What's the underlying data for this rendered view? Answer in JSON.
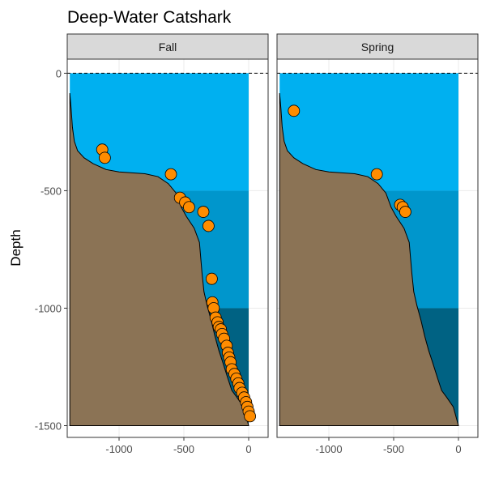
{
  "chart_data": {
    "type": "scatter",
    "title": "Deep-Water Catshark",
    "xlabel": "",
    "ylabel": "Depth",
    "xlim": [
      -1400,
      150
    ],
    "ylim": [
      -1550,
      60
    ],
    "x_ticks": [
      -1000,
      -500,
      0
    ],
    "y_ticks": [
      0,
      -500,
      -1000,
      -1500
    ],
    "x_tick_labels": [
      "-1000",
      "-500",
      "0"
    ],
    "y_tick_labels": [
      "0",
      "-500",
      "-1000",
      "-1500"
    ],
    "grid": true,
    "facets": [
      "Fall",
      "Spring"
    ],
    "colors": {
      "water_shallow": "#00B0F0",
      "water_mid": "#0096CC",
      "water_deep": "#006283",
      "seabed": "#8B7355",
      "points": "#FF8C00",
      "strip": "#D9D9D9",
      "grid": "#EBEBEB"
    },
    "water_bands": [
      {
        "from": 0,
        "to": -500
      },
      {
        "from": -500,
        "to": -1000
      },
      {
        "from": -1000,
        "to": -1500
      }
    ],
    "seabed_profile": [
      [
        -1380,
        -85
      ],
      [
        -1370,
        -150
      ],
      [
        -1360,
        -230
      ],
      [
        -1345,
        -290
      ],
      [
        -1320,
        -330
      ],
      [
        -1270,
        -360
      ],
      [
        -1200,
        -385
      ],
      [
        -1100,
        -410
      ],
      [
        -1000,
        -420
      ],
      [
        -800,
        -428
      ],
      [
        -700,
        -440
      ],
      [
        -620,
        -470
      ],
      [
        -560,
        -510
      ],
      [
        -520,
        -570
      ],
      [
        -480,
        -610
      ],
      [
        -420,
        -660
      ],
      [
        -380,
        -720
      ],
      [
        -360,
        -850
      ],
      [
        -345,
        -930
      ],
      [
        -320,
        -990
      ],
      [
        -290,
        -1050
      ],
      [
        -260,
        -1120
      ],
      [
        -230,
        -1180
      ],
      [
        -200,
        -1230
      ],
      [
        -160,
        -1300
      ],
      [
        -130,
        -1350
      ],
      [
        -90,
        -1380
      ],
      [
        -40,
        -1420
      ],
      [
        -10,
        -1480
      ],
      [
        0,
        -1500
      ]
    ],
    "series": [
      {
        "panel": "Fall",
        "x": [
          -1130,
          -1110,
          -600,
          -530,
          -490,
          -460,
          -350,
          -310,
          -285,
          -280,
          -270,
          -255,
          -240,
          -230,
          -215,
          -205,
          -190,
          -170,
          -160,
          -150,
          -140,
          -130,
          -110,
          -95,
          -80,
          -70,
          -50,
          -35,
          -20,
          -10,
          0,
          10
        ],
        "y": [
          -325,
          -360,
          -430,
          -530,
          -550,
          -570,
          -590,
          -650,
          -875,
          -975,
          -1000,
          -1040,
          -1060,
          -1080,
          -1090,
          -1110,
          -1130,
          -1160,
          -1190,
          -1210,
          -1230,
          -1260,
          -1280,
          -1300,
          -1320,
          -1340,
          -1360,
          -1380,
          -1400,
          -1420,
          -1440,
          -1460
        ]
      },
      {
        "panel": "Spring",
        "x": [
          -1270,
          -630,
          -450,
          -430,
          -410
        ],
        "y": [
          -160,
          -430,
          -560,
          -570,
          -590
        ]
      }
    ]
  }
}
